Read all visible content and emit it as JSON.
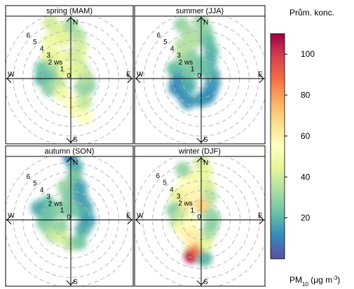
{
  "chart_data": {
    "type": "polar_annulus_heatmap",
    "legend": {
      "title": "Prům. konc.",
      "unit_label": "PM10 (μg m-3)",
      "ticks": [
        20,
        40,
        60,
        80,
        100
      ],
      "range": [
        0,
        110
      ],
      "colors": [
        "#5e4fa2",
        "#3288bd",
        "#66c2a5",
        "#abdda4",
        "#e6f598",
        "#ffffbf",
        "#fee08b",
        "#fdae61",
        "#f46d43",
        "#d53e4f",
        "#9e0142"
      ]
    },
    "axes": {
      "directions": [
        "N",
        "E",
        "S",
        "W"
      ],
      "direction_labels": {
        "N": "N",
        "E": "E",
        "S": "S",
        "W": "W"
      },
      "radial_labels": [
        "0",
        "1",
        "2 ws",
        "3",
        "4",
        "5",
        "6"
      ],
      "rmax": 6.8
    },
    "panels": [
      {
        "title": "spring (MAM)",
        "cells": [
          {
            "a": -20,
            "r": 6.2,
            "v": 40
          },
          {
            "a": -15,
            "r": 5.2,
            "v": 42
          },
          {
            "a": -10,
            "r": 4.2,
            "v": 44
          },
          {
            "a": 0,
            "r": 5.6,
            "v": 32
          },
          {
            "a": 10,
            "r": 4.5,
            "v": 34
          },
          {
            "a": 15,
            "r": 3.5,
            "v": 40
          },
          {
            "a": 20,
            "r": 2.5,
            "v": 48
          },
          {
            "a": -30,
            "r": 4.5,
            "v": 47
          },
          {
            "a": -35,
            "r": 3.5,
            "v": 52
          },
          {
            "a": -25,
            "r": 2.5,
            "v": 48
          },
          {
            "a": -45,
            "r": 3.2,
            "v": 44
          },
          {
            "a": -55,
            "r": 2.3,
            "v": 40
          },
          {
            "a": -70,
            "r": 3.2,
            "v": 25
          },
          {
            "a": -70,
            "r": 1.8,
            "v": 33
          },
          {
            "a": -85,
            "r": 2.0,
            "v": 26
          },
          {
            "a": -90,
            "r": 3.0,
            "v": 20
          },
          {
            "a": -100,
            "r": 2.2,
            "v": 22
          },
          {
            "a": -115,
            "r": 2.5,
            "v": 28
          },
          {
            "a": -120,
            "r": 1.5,
            "v": 35
          },
          {
            "a": -150,
            "r": 1.8,
            "v": 48
          },
          {
            "a": 180,
            "r": 2.5,
            "v": 55
          },
          {
            "a": 170,
            "r": 3.3,
            "v": 50
          },
          {
            "a": 160,
            "r": 4.3,
            "v": 55
          },
          {
            "a": 150,
            "r": 2.8,
            "v": 38
          },
          {
            "a": 130,
            "r": 1.5,
            "v": 32
          },
          {
            "a": 115,
            "r": 2.0,
            "v": 28
          },
          {
            "a": 100,
            "r": 1.8,
            "v": 30
          },
          {
            "a": 80,
            "r": 1.4,
            "v": 35
          },
          {
            "a": 50,
            "r": 1.5,
            "v": 38
          },
          {
            "a": 30,
            "r": 1.2,
            "v": 42
          },
          {
            "a": 0,
            "r": 0.8,
            "v": 45
          },
          {
            "a": -40,
            "r": 1.0,
            "v": 46
          },
          {
            "a": 10,
            "r": 2.5,
            "v": 40
          }
        ]
      },
      {
        "title": "summer (JJA)",
        "cells": [
          {
            "a": -20,
            "r": 6.0,
            "v": 30
          },
          {
            "a": -15,
            "r": 5.0,
            "v": 32
          },
          {
            "a": -10,
            "r": 4.0,
            "v": 35
          },
          {
            "a": 0,
            "r": 6.0,
            "v": 30
          },
          {
            "a": 5,
            "r": 5.0,
            "v": 28
          },
          {
            "a": 10,
            "r": 4.0,
            "v": 22
          },
          {
            "a": 20,
            "r": 3.0,
            "v": 20
          },
          {
            "a": 25,
            "r": 2.0,
            "v": 18
          },
          {
            "a": -30,
            "r": 4.0,
            "v": 35
          },
          {
            "a": -40,
            "r": 3.0,
            "v": 38
          },
          {
            "a": -50,
            "r": 2.5,
            "v": 30
          },
          {
            "a": -25,
            "r": 2.5,
            "v": 28
          },
          {
            "a": -70,
            "r": 3.0,
            "v": 22
          },
          {
            "a": -80,
            "r": 2.0,
            "v": 20
          },
          {
            "a": -95,
            "r": 2.5,
            "v": 15
          },
          {
            "a": -110,
            "r": 2.8,
            "v": 12
          },
          {
            "a": -130,
            "r": 2.5,
            "v": 12
          },
          {
            "a": -150,
            "r": 2.8,
            "v": 14
          },
          {
            "a": 180,
            "r": 2.2,
            "v": 15
          },
          {
            "a": 160,
            "r": 2.0,
            "v": 13
          },
          {
            "a": 140,
            "r": 1.5,
            "v": 12
          },
          {
            "a": 110,
            "r": 1.3,
            "v": 14
          },
          {
            "a": 70,
            "r": 1.2,
            "v": 16
          },
          {
            "a": 40,
            "r": 1.0,
            "v": 20
          },
          {
            "a": -120,
            "r": 1.5,
            "v": 18
          },
          {
            "a": 0,
            "r": 1.5,
            "v": 24
          },
          {
            "a": -60,
            "r": 1.2,
            "v": 25
          }
        ]
      },
      {
        "title": "autumn (SON)",
        "cells": [
          {
            "a": 0,
            "r": 6.5,
            "v": 12
          },
          {
            "a": 5,
            "r": 5.5,
            "v": 18
          },
          {
            "a": 5,
            "r": 4.5,
            "v": 24
          },
          {
            "a": -10,
            "r": 3.5,
            "v": 30
          },
          {
            "a": -5,
            "r": 2.5,
            "v": 26
          },
          {
            "a": 15,
            "r": 3.5,
            "v": 16
          },
          {
            "a": 25,
            "r": 2.5,
            "v": 16
          },
          {
            "a": 50,
            "r": 2.0,
            "v": 16
          },
          {
            "a": 70,
            "r": 1.5,
            "v": 20
          },
          {
            "a": -55,
            "r": 3.0,
            "v": 22
          },
          {
            "a": -70,
            "r": 3.6,
            "v": 18
          },
          {
            "a": -75,
            "r": 2.3,
            "v": 24
          },
          {
            "a": -95,
            "r": 2.8,
            "v": 22
          },
          {
            "a": -110,
            "r": 2.5,
            "v": 28
          },
          {
            "a": -130,
            "r": 2.5,
            "v": 36
          },
          {
            "a": -150,
            "r": 2.0,
            "v": 42
          },
          {
            "a": 180,
            "r": 2.5,
            "v": 36
          },
          {
            "a": 160,
            "r": 2.5,
            "v": 25
          },
          {
            "a": 130,
            "r": 1.6,
            "v": 20
          },
          {
            "a": 110,
            "r": 1.6,
            "v": 18
          },
          {
            "a": 90,
            "r": 1.8,
            "v": 16
          },
          {
            "a": -40,
            "r": 1.5,
            "v": 28
          },
          {
            "a": 0,
            "r": 1.0,
            "v": 25
          },
          {
            "a": -120,
            "r": 1.2,
            "v": 30
          }
        ]
      },
      {
        "title": "winter (DJF)",
        "cells": [
          {
            "a": 0,
            "r": 6.0,
            "v": 40
          },
          {
            "a": 5,
            "r": 5.0,
            "v": 45
          },
          {
            "a": -10,
            "r": 4.5,
            "v": 50
          },
          {
            "a": -20,
            "r": 5.5,
            "v": 30
          },
          {
            "a": -25,
            "r": 4.0,
            "v": 55
          },
          {
            "a": -30,
            "r": 3.0,
            "v": 60
          },
          {
            "a": -15,
            "r": 3.0,
            "v": 58
          },
          {
            "a": 10,
            "r": 3.5,
            "v": 42
          },
          {
            "a": 20,
            "r": 2.5,
            "v": 35
          },
          {
            "a": -45,
            "r": 3.5,
            "v": 45
          },
          {
            "a": -50,
            "r": 2.2,
            "v": 62
          },
          {
            "a": -70,
            "r": 3.0,
            "v": 28
          },
          {
            "a": -80,
            "r": 2.0,
            "v": 40
          },
          {
            "a": -95,
            "r": 2.5,
            "v": 35
          },
          {
            "a": -110,
            "r": 2.2,
            "v": 48
          },
          {
            "a": -130,
            "r": 2.0,
            "v": 58
          },
          {
            "a": -150,
            "r": 1.8,
            "v": 62
          },
          {
            "a": -160,
            "r": 3.0,
            "v": 60
          },
          {
            "a": -165,
            "r": 3.8,
            "v": 105
          },
          {
            "a": -175,
            "r": 3.2,
            "v": 88
          },
          {
            "a": 175,
            "r": 4.0,
            "v": 20
          },
          {
            "a": 170,
            "r": 2.5,
            "v": 45
          },
          {
            "a": 150,
            "r": 1.5,
            "v": 35
          },
          {
            "a": 120,
            "r": 1.2,
            "v": 30
          },
          {
            "a": 80,
            "r": 1.2,
            "v": 28
          },
          {
            "a": 45,
            "r": 1.0,
            "v": 30
          },
          {
            "a": 0,
            "r": 1.5,
            "v": 68
          },
          {
            "a": -100,
            "r": 1.0,
            "v": 55
          }
        ]
      }
    ]
  }
}
